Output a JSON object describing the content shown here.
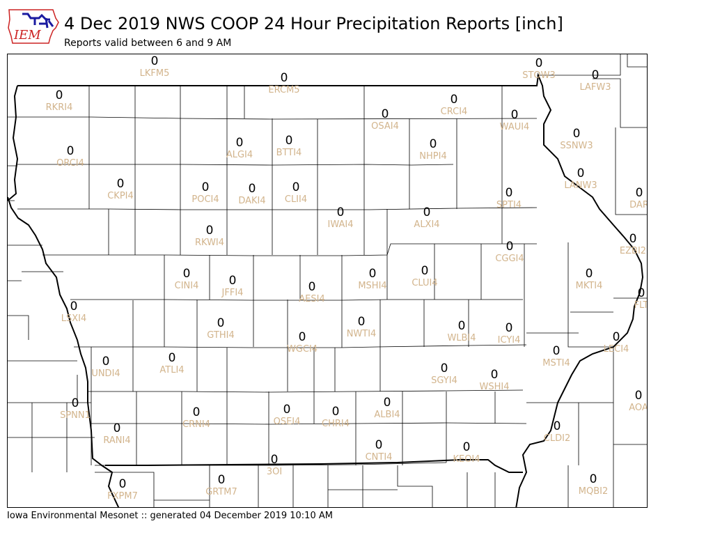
{
  "header": {
    "title": "4 Dec 2019 NWS COOP 24 Hour Precipitation Reports [inch]",
    "subtitle": "Reports valid between 6 and 9 AM"
  },
  "logo": {
    "text": "IEM",
    "color_text": "#cc2222",
    "color_outline": "#cc2222",
    "color_bird": "#1a1aa0"
  },
  "map": {
    "border_color": "#000000",
    "label_color": "#d2b48c",
    "stations": [
      {
        "id": "LKFM5",
        "value": "0"
      },
      {
        "id": "ERCM5",
        "value": "0"
      },
      {
        "id": "STOW3",
        "value": "0"
      },
      {
        "id": "LAFW3",
        "value": "0"
      },
      {
        "id": "RKRI4",
        "value": "0"
      },
      {
        "id": "CRCI4",
        "value": "0"
      },
      {
        "id": "OSAI4",
        "value": "0"
      },
      {
        "id": "WAUI4",
        "value": "0"
      },
      {
        "id": "SSNW3",
        "value": "0"
      },
      {
        "id": "ORCI4",
        "value": "0"
      },
      {
        "id": "ALGI4",
        "value": "0"
      },
      {
        "id": "BTTI4",
        "value": "0"
      },
      {
        "id": "NHPI4",
        "value": "0"
      },
      {
        "id": "LANW3",
        "value": "0"
      },
      {
        "id": "CKPI4",
        "value": "0"
      },
      {
        "id": "POCI4",
        "value": "0"
      },
      {
        "id": "DAKI4",
        "value": "0"
      },
      {
        "id": "CLII4",
        "value": "0"
      },
      {
        "id": "SPTI4",
        "value": "0"
      },
      {
        "id": "DAR",
        "value": "0"
      },
      {
        "id": "IWAI4",
        "value": "0"
      },
      {
        "id": "ALXI4",
        "value": "0"
      },
      {
        "id": "RKWI4",
        "value": "0"
      },
      {
        "id": "EZBI2",
        "value": "0"
      },
      {
        "id": "CGGI4",
        "value": "0"
      },
      {
        "id": "CINI4",
        "value": "0"
      },
      {
        "id": "JFFI4",
        "value": "0"
      },
      {
        "id": "MSHI4",
        "value": "0"
      },
      {
        "id": "CLUI4",
        "value": "0"
      },
      {
        "id": "MKTI4",
        "value": "0"
      },
      {
        "id": "AESI4",
        "value": "0"
      },
      {
        "id": "FLT",
        "value": "0"
      },
      {
        "id": "LSXI4",
        "value": "0"
      },
      {
        "id": "GTHI4",
        "value": "0"
      },
      {
        "id": "NWTI4",
        "value": "0"
      },
      {
        "id": "WLBI4",
        "value": "0"
      },
      {
        "id": "ICYI4",
        "value": "0"
      },
      {
        "id": "LECI4",
        "value": "0"
      },
      {
        "id": "WGCI4",
        "value": "0"
      },
      {
        "id": "MSTI4",
        "value": "0"
      },
      {
        "id": "UNDI4",
        "value": "0"
      },
      {
        "id": "ATLI4",
        "value": "0"
      },
      {
        "id": "SGYI4",
        "value": "0"
      },
      {
        "id": "WSHI4",
        "value": "0"
      },
      {
        "id": "AOA",
        "value": "0"
      },
      {
        "id": "SPNN1",
        "value": "0"
      },
      {
        "id": "OSEI4",
        "value": "0"
      },
      {
        "id": "CRNI4",
        "value": "0"
      },
      {
        "id": "CHRI4",
        "value": "0"
      },
      {
        "id": "ALBI4",
        "value": "0"
      },
      {
        "id": "RANI4",
        "value": "0"
      },
      {
        "id": "CNTI4",
        "value": "0"
      },
      {
        "id": "KEOI4",
        "value": "0"
      },
      {
        "id": "CLDI2",
        "value": "0"
      },
      {
        "id": "3OI",
        "value": "0"
      },
      {
        "id": "FXPM7",
        "value": "0"
      },
      {
        "id": "GRTM7",
        "value": "0"
      },
      {
        "id": "MQBI2",
        "value": "0"
      }
    ]
  },
  "footer": {
    "text": "Iowa Environmental Mesonet :: generated 04 December 2019 10:10 AM"
  }
}
